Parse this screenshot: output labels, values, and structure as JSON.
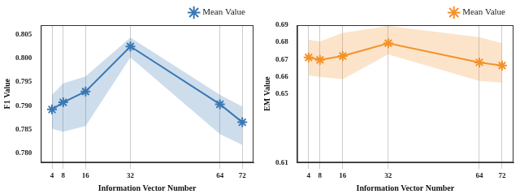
{
  "chart_data": [
    {
      "type": "line",
      "x_label": "Information Vector Number",
      "y_label": "F1 Value",
      "x": [
        4,
        8,
        16,
        32,
        64,
        72
      ],
      "series": [
        {
          "name": "Mean Value",
          "color": "#3a78b5",
          "marker": "star",
          "line_style": "solid",
          "values": [
            0.7892,
            0.7907,
            0.793,
            0.8025,
            0.7903,
            0.7865
          ],
          "lower": [
            0.7851,
            0.7845,
            0.7857,
            0.8002,
            0.784,
            0.7817
          ],
          "upper": [
            0.7923,
            0.7947,
            0.7962,
            0.8044,
            0.7923,
            0.7898
          ]
        }
      ],
      "xlim": [
        0,
        76
      ],
      "xticks": [
        4,
        8,
        16,
        32,
        64,
        72
      ],
      "ylim": [
        0.778,
        0.807
      ],
      "yticks": [
        {
          "value": 0.78,
          "label": "0.780"
        },
        {
          "value": 0.785,
          "label": "0.785"
        },
        {
          "value": 0.79,
          "label": "0.790"
        },
        {
          "value": 0.795,
          "label": "0.795"
        },
        {
          "value": 0.8,
          "label": "0.800"
        },
        {
          "value": 0.805,
          "label": "0.805"
        }
      ],
      "grid": "x",
      "legend": "upper right"
    },
    {
      "type": "line",
      "x_label": "Information Vector Number",
      "y_label": "EM Value",
      "x": [
        4,
        8,
        16,
        32,
        64,
        72
      ],
      "series": [
        {
          "name": "Mean Value",
          "color": "#f5922a",
          "marker": "star",
          "line_style": "solid",
          "values": [
            0.6712,
            0.6698,
            0.672,
            0.6795,
            0.6683,
            0.6665
          ],
          "lower": [
            0.6607,
            0.6598,
            0.6585,
            0.673,
            0.6575,
            0.6565
          ],
          "upper": [
            0.6815,
            0.6805,
            0.6855,
            0.6895,
            0.683,
            0.6795
          ]
        }
      ],
      "xlim": [
        0,
        76
      ],
      "xticks": [
        4,
        8,
        16,
        32,
        64,
        72
      ],
      "ylim": [
        0.61,
        0.69
      ],
      "yticks": [
        0.61,
        0.65,
        0.66,
        0.67,
        0.68,
        0.69
      ],
      "grid": "x",
      "legend": "upper right"
    }
  ]
}
